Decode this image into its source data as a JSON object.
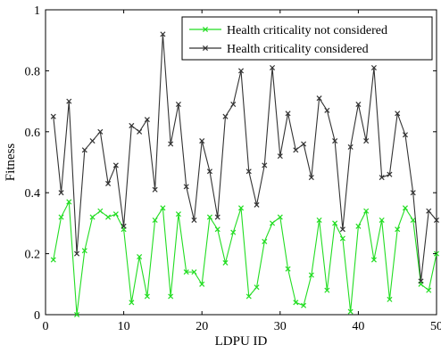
{
  "chart_data": {
    "type": "line",
    "xlabel": "LDPU ID",
    "ylabel": "Fitness",
    "xlim": [
      0,
      50
    ],
    "ylim": [
      0,
      1
    ],
    "xticks": [
      "0",
      "10",
      "20",
      "30",
      "40",
      "50"
    ],
    "yticks": [
      "0",
      "0.2",
      "0.4",
      "0.6",
      "0.8",
      "1"
    ],
    "grid": false,
    "legend_position": "top-right",
    "x": [
      1,
      2,
      3,
      4,
      5,
      6,
      7,
      8,
      9,
      10,
      11,
      12,
      13,
      14,
      15,
      16,
      17,
      18,
      19,
      20,
      21,
      22,
      23,
      24,
      25,
      26,
      27,
      28,
      29,
      30,
      31,
      32,
      33,
      34,
      35,
      36,
      37,
      38,
      39,
      40,
      41,
      42,
      43,
      44,
      45,
      46,
      47,
      48,
      49,
      50
    ],
    "series": [
      {
        "name": "Health criticality not considered",
        "color": "#22dd22",
        "marker": "x",
        "values": [
          0.18,
          0.32,
          0.37,
          0.0,
          0.21,
          0.32,
          0.34,
          0.32,
          0.33,
          0.28,
          0.04,
          0.19,
          0.06,
          0.31,
          0.35,
          0.06,
          0.33,
          0.14,
          0.14,
          0.1,
          0.32,
          0.28,
          0.17,
          0.27,
          0.35,
          0.06,
          0.09,
          0.24,
          0.3,
          0.32,
          0.15,
          0.04,
          0.03,
          0.13,
          0.31,
          0.08,
          0.3,
          0.25,
          0.01,
          0.29,
          0.34,
          0.18,
          0.31,
          0.05,
          0.28,
          0.35,
          0.31,
          0.1,
          0.08,
          0.2
        ]
      },
      {
        "name": "Health criticality considered",
        "color": "#333333",
        "marker": "x",
        "values": [
          0.65,
          0.4,
          0.7,
          0.2,
          0.54,
          0.57,
          0.6,
          0.43,
          0.49,
          0.29,
          0.62,
          0.6,
          0.64,
          0.41,
          0.92,
          0.56,
          0.69,
          0.42,
          0.31,
          0.57,
          0.47,
          0.32,
          0.65,
          0.69,
          0.8,
          0.47,
          0.36,
          0.49,
          0.81,
          0.52,
          0.66,
          0.54,
          0.56,
          0.45,
          0.71,
          0.67,
          0.57,
          0.28,
          0.55,
          0.69,
          0.57,
          0.81,
          0.45,
          0.46,
          0.66,
          0.59,
          0.4,
          0.11,
          0.34,
          0.31
        ]
      }
    ]
  }
}
